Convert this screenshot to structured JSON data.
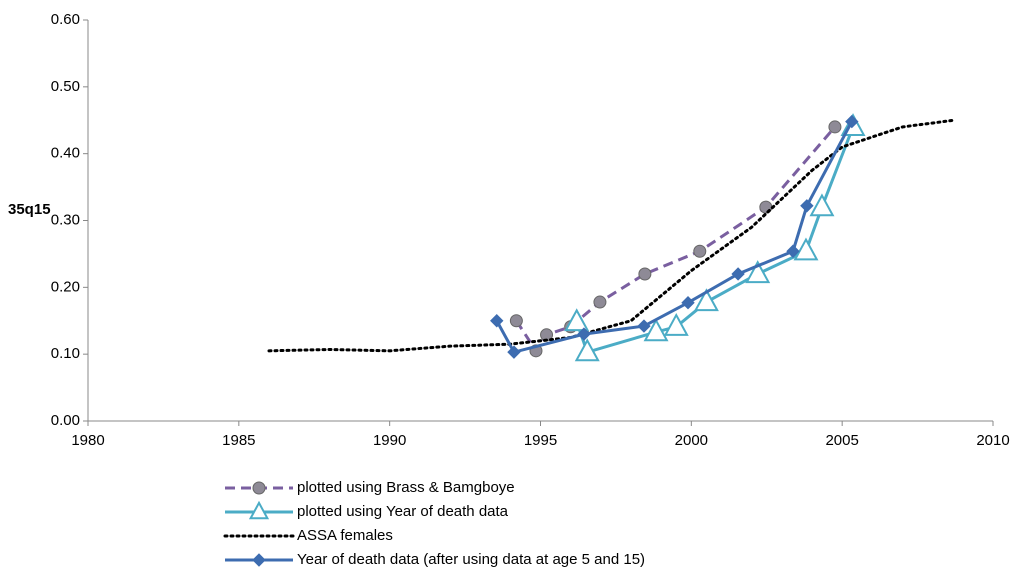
{
  "chart_data": {
    "type": "line",
    "y_label": "35q15",
    "xlim": [
      1980,
      2010
    ],
    "xticks": [
      1980,
      1985,
      1990,
      1995,
      2000,
      2005,
      2010
    ],
    "ylim": [
      0,
      0.6
    ],
    "yticks": [
      {
        "value": 0,
        "label": "0.00"
      },
      {
        "value": 0.1,
        "label": "0.10"
      },
      {
        "value": 0.2,
        "label": "0.20"
      },
      {
        "value": 0.3,
        "label": "0.30"
      },
      {
        "value": 0.4,
        "label": "0.40"
      },
      {
        "value": 0.5,
        "label": "0.50"
      },
      {
        "value": 0.6,
        "label": "0.60"
      }
    ],
    "legend": "bottom",
    "series": [
      {
        "name": "plotted using Brass & Bamgboye",
        "color": "#7a5fa0",
        "marker_color": "#8e8a96",
        "marker": "circle",
        "dash": "dashed",
        "x": [
          1994.2,
          1994.85,
          1995.2,
          1996.0,
          1996.97,
          1998.46,
          2000.28,
          2002.47,
          2004.76
        ],
        "values": [
          0.15,
          0.105,
          0.129,
          0.141,
          0.178,
          0.22,
          0.254,
          0.32,
          0.44
        ]
      },
      {
        "name": "plotted using Year of death data",
        "color": "#4bacc6",
        "marker_color": "#ffffff",
        "marker": "triangle",
        "dash": "solid",
        "x": [
          1996.2,
          1996.55,
          1998.83,
          1999.5,
          2000.5,
          2002.2,
          2003.8,
          2004.33,
          2005.36
        ],
        "values": [
          0.148,
          0.103,
          0.133,
          0.141,
          0.178,
          0.22,
          0.254,
          0.32,
          0.44
        ]
      },
      {
        "name": "ASSA females",
        "color": "#000000",
        "marker": "none",
        "dash": "dotted",
        "x": [
          1986,
          1988,
          1990,
          1992,
          1994,
          1996,
          1998,
          2000,
          2002,
          2004,
          2005,
          2006,
          2007,
          2008.7
        ],
        "values": [
          0.105,
          0.107,
          0.105,
          0.112,
          0.115,
          0.125,
          0.15,
          0.225,
          0.29,
          0.375,
          0.41,
          0.425,
          0.44,
          0.45
        ]
      },
      {
        "name": "Year of death data (after using data at age 5 and 15)",
        "color": "#3d6cb0",
        "marker_color": "#3d6cb0",
        "marker": "diamond",
        "dash": "solid",
        "x": [
          1993.55,
          1994.12,
          1996.44,
          1998.43,
          1999.89,
          2001.55,
          2003.37,
          2003.83,
          2005.32
        ],
        "values": [
          0.15,
          0.103,
          0.13,
          0.142,
          0.177,
          0.22,
          0.254,
          0.322,
          0.448
        ]
      }
    ]
  }
}
